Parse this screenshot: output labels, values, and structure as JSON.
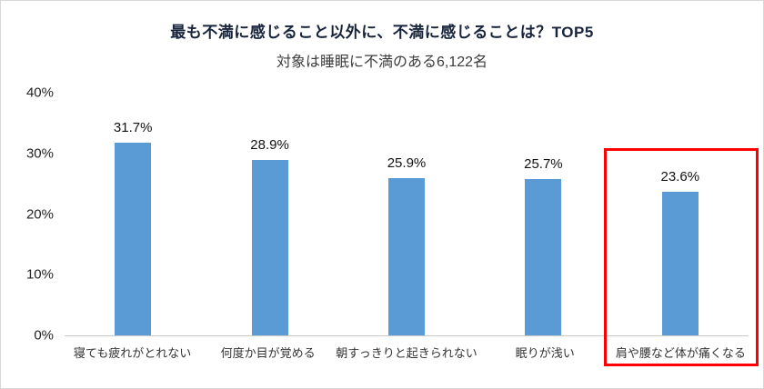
{
  "chart_data": {
    "type": "bar",
    "title": "最も不満に感じること以外に、不満に感じることは？TOP5",
    "subtitle": "対象は睡眠に不満のある6,122名",
    "categories": [
      "寝ても疲れがとれない",
      "何度か目が覚める",
      "朝すっきりと起きられない",
      "眠りが浅い",
      "肩や腰など体が痛くなる"
    ],
    "values": [
      31.7,
      28.9,
      25.9,
      25.7,
      23.6
    ],
    "value_labels": [
      "31.7%",
      "28.9%",
      "25.9%",
      "25.7%",
      "23.6%"
    ],
    "ylim": [
      0,
      40
    ],
    "yticks": [
      0,
      10,
      20,
      30,
      40
    ],
    "ytick_labels": [
      "0%",
      "10%",
      "20%",
      "30%",
      "40%"
    ],
    "xlabel": "",
    "ylabel": "",
    "grid": "baseline-only",
    "legend": "none",
    "highlight_index": 4,
    "colors": {
      "bar": "#5b9bd5",
      "highlight": "#ff0000"
    }
  }
}
